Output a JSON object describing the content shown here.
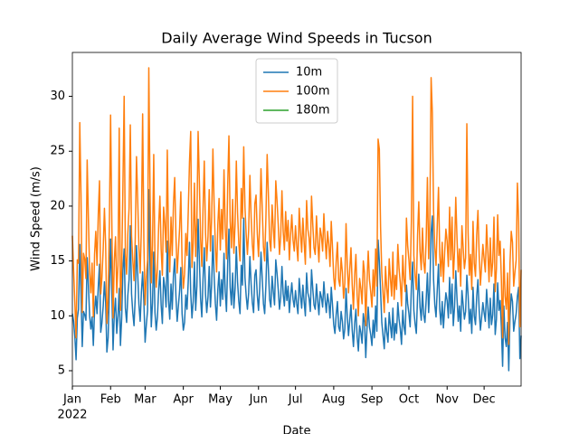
{
  "chart_data": {
    "type": "line",
    "title": "Daily Average Wind Speeds in Tucson",
    "x_label": "Date",
    "y_label": "Wind Speed (m/s)",
    "x_year_label": "2022",
    "xlim": [
      0,
      364
    ],
    "xticks": [
      {
        "value": 0,
        "label": "Jan"
      },
      {
        "value": 31,
        "label": "Feb"
      },
      {
        "value": 59,
        "label": "Mar"
      },
      {
        "value": 90,
        "label": "Apr"
      },
      {
        "value": 120,
        "label": "May"
      },
      {
        "value": 151,
        "label": "Jun"
      },
      {
        "value": 181,
        "label": "Jul"
      },
      {
        "value": 212,
        "label": "Aug"
      },
      {
        "value": 243,
        "label": "Sep"
      },
      {
        "value": 273,
        "label": "Oct"
      },
      {
        "value": 304,
        "label": "Nov"
      },
      {
        "value": 334,
        "label": "Dec"
      }
    ],
    "ylim": [
      3.6,
      34.0
    ],
    "yticks": [
      5,
      10,
      15,
      20,
      25,
      30
    ],
    "legend": "upper center",
    "series": [
      {
        "name": "10m",
        "color": "#1f77b4",
        "values": [
          10.2,
          9.5,
          8.1,
          6.0,
          9.8,
          10.6,
          16.5,
          12.0,
          7.2,
          10.4,
          10.1,
          9.6,
          15.3,
          12.8,
          10.0,
          8.8,
          9.9,
          7.3,
          10.5,
          11.8,
          10.2,
          12.6,
          14.7,
          8.5,
          9.4,
          10.9,
          13.1,
          11.2,
          6.7,
          8.0,
          12.3,
          17.0,
          12.4,
          6.9,
          10.2,
          11.6,
          8.4,
          10.0,
          12.5,
          7.3,
          9.8,
          14.2,
          16.1,
          10.7,
          9.4,
          11.9,
          13.3,
          18.2,
          12.0,
          10.3,
          9.1,
          11.7,
          16.4,
          13.8,
          11.0,
          9.5,
          12.2,
          14.0,
          11.3,
          7.6,
          9.2,
          10.5,
          21.5,
          14.6,
          9.0,
          11.2,
          15.8,
          10.3,
          8.7,
          9.9,
          12.4,
          14.1,
          11.0,
          9.3,
          13.5,
          12.6,
          10.8,
          16.8,
          11.4,
          9.7,
          12.9,
          10.6,
          13.7,
          15.2,
          11.8,
          9.5,
          10.9,
          12.3,
          14.4,
          10.2,
          8.7,
          9.4,
          11.9,
          10.6,
          13.2,
          16.7,
          12.1,
          9.8,
          11.3,
          14.9,
          10.5,
          12.7,
          18.8,
          15.1,
          11.6,
          9.9,
          13.4,
          16.2,
          12.0,
          10.3,
          11.7,
          14.5,
          10.8,
          12.9,
          17.3,
          13.6,
          11.1,
          9.6,
          12.4,
          14.0,
          10.9,
          13.3,
          11.5,
          15.7,
          12.2,
          10.4,
          14.8,
          17.9,
          12.6,
          11.0,
          13.9,
          10.7,
          12.5,
          16.3,
          13.1,
          11.3,
          10.2,
          14.6,
          12.8,
          18.9,
          13.5,
          11.8,
          10.6,
          12.1,
          15.4,
          12.9,
          11.2,
          10.3,
          13.7,
          14.2,
          11.9,
          10.5,
          12.6,
          15.8,
          13.4,
          11.1,
          10.2,
          12.8,
          16.7,
          14.3,
          11.5,
          10.8,
          13.6,
          12.2,
          11.0,
          15.1,
          13.9,
          12.4,
          10.6,
          11.7,
          14.5,
          12.0,
          10.9,
          13.2,
          11.4,
          12.7,
          10.3,
          11.8,
          13.0,
          11.5,
          10.8,
          12.3,
          11.1,
          10.2,
          13.4,
          11.9,
          10.7,
          12.8,
          11.3,
          10.0,
          13.9,
          12.1,
          11.6,
          10.4,
          14.2,
          12.5,
          11.0,
          10.6,
          12.9,
          11.4,
          10.1,
          12.2,
          11.7,
          10.8,
          13.1,
          11.5,
          10.3,
          12.0,
          11.2,
          9.8,
          12.6,
          11.0,
          9.2,
          8.4,
          10.1,
          11.3,
          9.0,
          8.6,
          10.4,
          9.5,
          7.9,
          8.8,
          12.5,
          9.9,
          8.2,
          9.6,
          11.0,
          8.7,
          7.2,
          9.3,
          10.6,
          8.1,
          6.8,
          9.1,
          8.5,
          7.5,
          10.2,
          9.4,
          6.2,
          8.9,
          10.8,
          9.0,
          8.3,
          7.3,
          9.6,
          8.0,
          10.9,
          8.6,
          16.9,
          15.0,
          12.3,
          9.4,
          8.2,
          7.0,
          9.8,
          8.5,
          7.6,
          10.3,
          9.1,
          8.0,
          10.7,
          7.8,
          9.3,
          8.4,
          11.2,
          9.7,
          8.8,
          7.4,
          10.5,
          9.0,
          8.3,
          12.8,
          11.1,
          10.2,
          9.0,
          12.6,
          14.9,
          10.5,
          9.3,
          8.4,
          11.7,
          13.8,
          10.8,
          9.6,
          12.2,
          10.1,
          9.4,
          11.5,
          13.9,
          10.3,
          12.8,
          17.6,
          19.1,
          13.3,
          11.0,
          9.9,
          12.4,
          14.7,
          10.6,
          9.2,
          11.3,
          8.9,
          10.7,
          12.1,
          11.4,
          9.8,
          13.5,
          10.2,
          12.9,
          9.1,
          10.8,
          14.1,
          11.6,
          9.5,
          10.9,
          8.6,
          12.3,
          11.0,
          9.7,
          10.4,
          13.7,
          11.9,
          9.3,
          10.6,
          8.4,
          12.6,
          10.0,
          9.2,
          11.8,
          13.3,
          10.5,
          8.7,
          9.9,
          11.2,
          10.3,
          9.5,
          12.4,
          10.8,
          8.9,
          11.6,
          9.2,
          10.1,
          12.9,
          8.3,
          9.7,
          13.0,
          10.5,
          11.4,
          9.0,
          5.4,
          10.9,
          8.0,
          7.2,
          9.4,
          5.0,
          10.0,
          12.0,
          11.3,
          8.6,
          9.5,
          10.2,
          11.8,
          12.6,
          6.1,
          8.2
        ]
      },
      {
        "name": "100m",
        "color": "#ff7f0e",
        "values": [
          17.3,
          14.1,
          11.2,
          8.0,
          15.1,
          14.8,
          27.6,
          21.0,
          10.3,
          15.7,
          15.2,
          13.4,
          24.2,
          18.9,
          14.0,
          12.1,
          14.8,
          9.9,
          15.6,
          17.7,
          14.6,
          19.2,
          22.3,
          12.0,
          13.5,
          16.1,
          19.8,
          16.4,
          9.3,
          11.6,
          18.4,
          28.3,
          18.6,
          9.8,
          15.0,
          17.2,
          12.1,
          14.6,
          27.1,
          10.5,
          14.3,
          21.8,
          30.0,
          15.6,
          13.8,
          17.5,
          19.8,
          27.4,
          17.3,
          15.1,
          13.2,
          17.0,
          24.5,
          20.5,
          16.2,
          13.9,
          18.1,
          28.4,
          16.8,
          11.0,
          13.6,
          15.1,
          32.6,
          21.4,
          13.0,
          16.4,
          24.7,
          15.0,
          12.6,
          14.3,
          18.2,
          20.9,
          16.1,
          13.7,
          19.9,
          18.4,
          15.8,
          25.1,
          16.7,
          14.0,
          19.0,
          15.5,
          20.2,
          22.6,
          17.3,
          13.9,
          15.9,
          18.0,
          21.3,
          14.8,
          12.5,
          13.8,
          17.5,
          15.5,
          19.5,
          24.0,
          26.8,
          14.4,
          16.6,
          22.1,
          15.4,
          18.7,
          26.8,
          22.3,
          17.1,
          14.5,
          19.8,
          24.1,
          17.6,
          15.0,
          17.2,
          21.5,
          15.9,
          19.0,
          25.2,
          20.1,
          16.3,
          14.0,
          18.3,
          20.7,
          16.0,
          19.7,
          17.0,
          23.3,
          18.0,
          15.2,
          21.9,
          26.4,
          18.6,
          16.2,
          20.6,
          15.7,
          18.4,
          24.1,
          19.4,
          16.6,
          15.0,
          21.6,
          18.9,
          25.4,
          19.9,
          17.4,
          15.6,
          17.8,
          22.8,
          19.0,
          16.5,
          15.1,
          20.2,
          21.0,
          17.5,
          15.4,
          18.6,
          23.4,
          19.8,
          16.3,
          15.0,
          18.9,
          24.7,
          21.1,
          16.9,
          15.9,
          20.1,
          18.0,
          16.2,
          22.3,
          20.5,
          18.3,
          15.6,
          17.3,
          21.4,
          17.7,
          16.0,
          19.5,
          16.8,
          18.7,
          15.1,
          17.4,
          19.2,
          16.9,
          15.9,
          18.2,
          16.4,
          15.0,
          19.8,
          17.6,
          15.8,
          18.9,
          16.7,
          14.7,
          20.5,
          17.9,
          17.1,
          15.3,
          20.9,
          18.4,
          16.2,
          15.6,
          19.1,
          16.8,
          14.9,
          18.0,
          17.3,
          15.9,
          19.3,
          17.0,
          15.2,
          17.7,
          16.5,
          14.5,
          18.6,
          16.2,
          13.5,
          12.4,
          14.9,
          16.7,
          13.3,
          12.7,
          15.3,
          14.0,
          11.6,
          13.0,
          18.4,
          14.6,
          12.1,
          14.2,
          16.2,
          12.8,
          10.6,
          13.7,
          15.6,
          11.9,
          10.0,
          13.4,
          12.5,
          11.1,
          15.0,
          13.9,
          9.1,
          13.1,
          15.9,
          13.3,
          12.2,
          10.8,
          14.2,
          11.8,
          16.1,
          12.7,
          26.1,
          25.2,
          18.1,
          13.9,
          12.1,
          10.3,
          14.5,
          12.5,
          11.2,
          15.2,
          13.4,
          11.8,
          15.8,
          11.5,
          13.7,
          12.4,
          16.5,
          14.3,
          13.0,
          10.9,
          15.5,
          13.3,
          12.2,
          18.9,
          16.4,
          15.1,
          13.3,
          18.6,
          30.0,
          15.5,
          13.7,
          12.4,
          17.3,
          20.4,
          15.9,
          14.2,
          18.0,
          14.9,
          13.9,
          17.0,
          22.6,
          15.2,
          18.9,
          31.7,
          28.5,
          19.6,
          16.2,
          14.6,
          18.3,
          21.7,
          15.6,
          13.6,
          16.7,
          13.1,
          15.8,
          17.9,
          16.8,
          14.5,
          19.9,
          15.1,
          19.0,
          13.4,
          15.9,
          20.8,
          17.1,
          14.0,
          16.1,
          12.7,
          18.2,
          16.2,
          14.3,
          15.3,
          27.5,
          17.6,
          13.7,
          15.6,
          12.4,
          18.6,
          14.8,
          13.6,
          17.4,
          19.6,
          15.5,
          12.8,
          14.6,
          16.5,
          15.2,
          14.0,
          18.3,
          15.9,
          13.1,
          17.1,
          13.6,
          14.9,
          19.0,
          12.2,
          14.3,
          19.2,
          15.5,
          16.8,
          13.3,
          8.0,
          16.1,
          11.8,
          10.6,
          13.9,
          7.4,
          14.8,
          17.7,
          16.7,
          12.7,
          14.0,
          15.1,
          22.1,
          18.6,
          9.0,
          14.2
        ]
      },
      {
        "name": "180m",
        "color": "#2ca02c",
        "values": [
          null,
          null,
          null,
          null,
          null,
          null,
          null,
          null,
          null,
          null,
          null,
          null,
          null,
          null,
          null,
          null,
          null,
          null,
          null,
          null,
          null,
          null,
          null,
          null,
          null,
          null,
          null,
          null,
          null,
          null,
          null,
          null,
          null,
          null,
          null,
          null,
          null,
          null,
          null,
          null,
          null,
          null,
          null,
          null,
          null,
          null,
          null,
          null,
          null,
          null,
          null,
          null,
          null,
          null,
          null,
          null,
          null,
          null,
          null,
          null,
          null,
          null,
          null,
          null,
          null,
          null,
          null,
          null,
          null,
          null,
          null,
          null,
          null,
          null,
          null,
          null,
          null,
          null,
          null,
          null,
          null,
          null,
          null,
          null,
          null,
          null,
          null,
          null,
          null,
          null,
          null,
          null,
          null,
          null,
          null,
          null,
          null,
          null,
          null,
          null,
          null,
          null,
          null,
          null,
          null,
          null,
          null,
          null,
          null,
          null,
          null,
          null,
          null,
          null,
          null,
          null,
          null,
          null,
          null,
          null,
          null,
          null,
          null,
          null,
          null,
          null,
          null,
          null,
          null,
          null,
          null,
          null,
          null,
          null,
          null,
          null,
          null,
          null,
          null,
          null,
          null,
          null,
          null,
          null,
          null,
          null,
          null,
          null,
          null,
          null,
          null,
          null,
          null,
          null,
          null,
          null,
          null,
          null,
          null,
          null,
          null,
          null,
          null,
          null,
          null,
          null,
          null,
          null,
          null,
          null,
          null,
          null,
          null,
          null,
          null,
          null,
          null,
          null,
          null,
          null,
          null,
          null,
          null,
          null,
          null,
          null,
          null,
          null,
          null,
          null,
          null,
          null,
          null,
          null,
          null,
          null,
          null,
          null,
          null,
          null,
          null,
          null,
          null,
          null,
          null,
          null,
          null,
          null,
          null,
          null,
          null,
          null,
          null,
          null,
          null,
          null,
          null,
          null,
          null,
          null,
          null,
          null,
          null,
          null,
          null,
          null,
          null,
          null,
          null,
          null,
          null,
          null,
          null,
          null,
          null,
          null,
          null,
          null,
          null,
          null,
          null,
          null,
          null,
          null,
          null,
          null,
          null,
          null,
          null,
          null,
          null,
          null,
          null,
          null,
          null,
          null,
          null,
          null,
          null,
          null,
          null,
          null,
          null,
          null,
          null,
          null,
          null,
          null,
          null,
          null,
          null,
          null,
          null,
          null,
          null,
          null,
          null,
          null,
          null,
          null,
          null,
          null,
          null,
          null,
          null,
          null,
          null,
          null,
          null,
          null,
          null,
          null,
          null,
          null,
          null,
          null,
          null,
          null,
          null,
          null,
          null,
          null,
          null,
          null,
          null,
          null,
          null,
          null,
          null,
          null,
          null,
          null,
          null,
          null,
          null,
          null,
          null,
          null,
          null,
          null,
          null,
          null,
          null,
          null,
          null,
          null,
          null,
          null,
          null,
          null,
          null,
          null,
          null,
          null,
          null,
          null,
          null,
          null,
          null,
          null,
          null,
          null,
          null,
          null,
          null,
          null,
          null,
          null,
          null,
          null,
          null,
          null,
          null,
          null,
          null,
          null,
          null,
          null,
          null,
          null,
          null,
          null,
          null,
          null,
          null
        ]
      }
    ]
  }
}
